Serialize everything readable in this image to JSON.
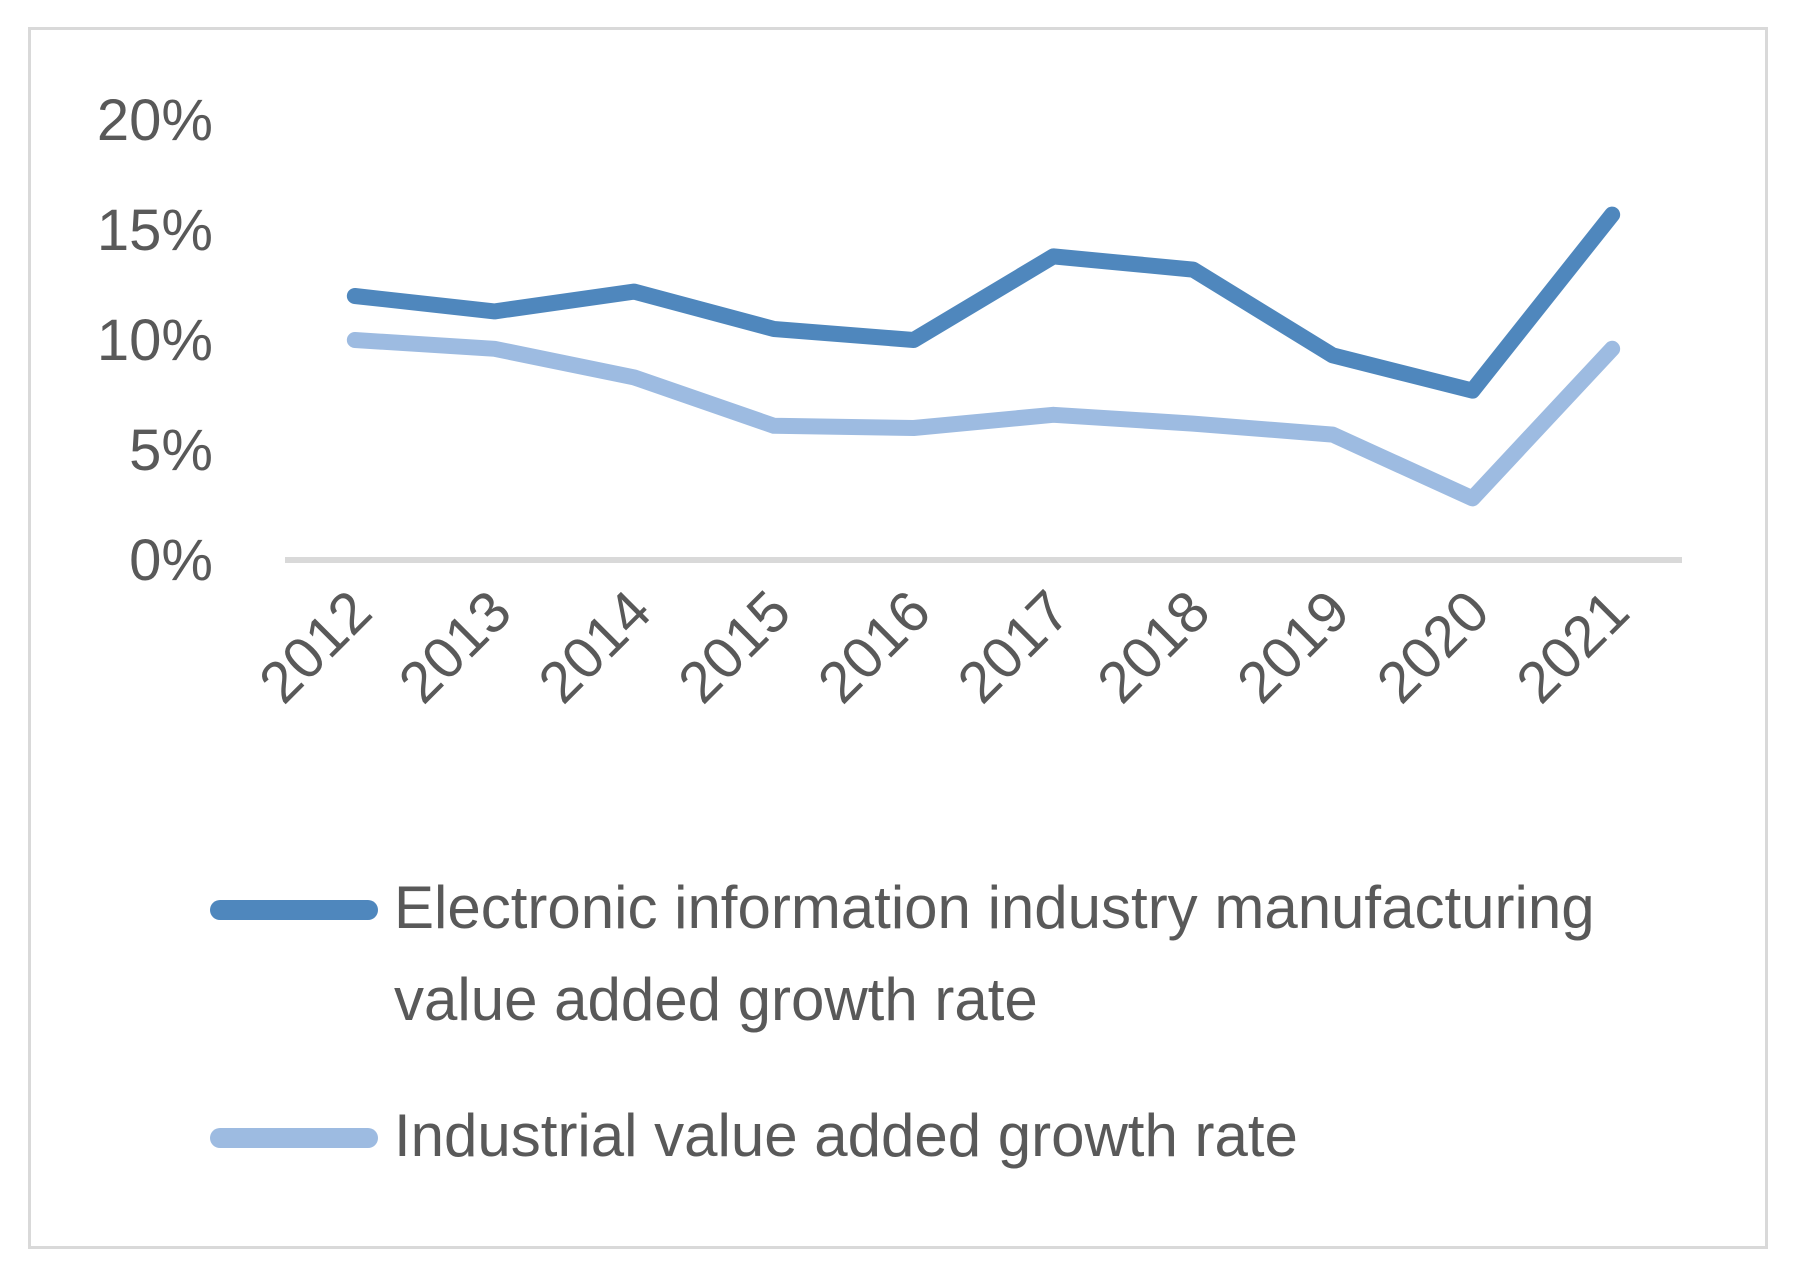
{
  "chart_data": {
    "type": "line",
    "title": "",
    "xlabel": "",
    "ylabel": "",
    "categories": [
      "2012",
      "2013",
      "2014",
      "2015",
      "2016",
      "2017",
      "2018",
      "2019",
      "2020",
      "2021"
    ],
    "ylim": [
      0,
      20
    ],
    "yticks": [
      0,
      5,
      10,
      15,
      20
    ],
    "ytick_labels": [
      "0%",
      "5%",
      "10%",
      "15%",
      "20%"
    ],
    "grid": false,
    "legend_position": "bottom",
    "series": [
      {
        "name": "Electronic information industry manufacturing value added growth rate",
        "color": "#4f87bd",
        "values": [
          12.0,
          11.3,
          12.2,
          10.5,
          10.0,
          13.8,
          13.2,
          9.3,
          7.7,
          15.7
        ]
      },
      {
        "name": "Industrial value added growth rate",
        "color": "#9dbbe1",
        "values": [
          10.0,
          9.6,
          8.3,
          6.1,
          6.0,
          6.6,
          6.2,
          5.7,
          2.8,
          9.6
        ]
      }
    ]
  }
}
